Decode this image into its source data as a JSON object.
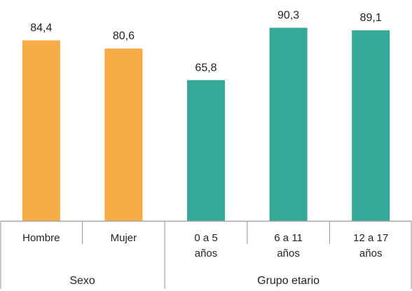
{
  "chart_data": {
    "type": "bar",
    "title": "",
    "xlabel": "",
    "ylabel": "",
    "ylim": [
      0,
      100
    ],
    "grid": false,
    "categories": [
      "Hombre",
      "Mujer",
      "0 a 5 años",
      "6 a 11 años",
      "12 a 17 años"
    ],
    "category_lines": [
      [
        "Hombre"
      ],
      [
        "Mujer"
      ],
      [
        "0 a 5",
        "años"
      ],
      [
        "6 a 11",
        "años"
      ],
      [
        "12 a 17",
        "años"
      ]
    ],
    "values": [
      84.4,
      80.6,
      65.8,
      90.3,
      89.1
    ],
    "value_labels": [
      "84,4",
      "80,6",
      "65,8",
      "90,3",
      "89,1"
    ],
    "groups": [
      {
        "name": "Sexo",
        "count": 2,
        "color": "#f7ac48"
      },
      {
        "name": "Grupo etario",
        "count": 3,
        "color": "#36a897"
      }
    ]
  }
}
